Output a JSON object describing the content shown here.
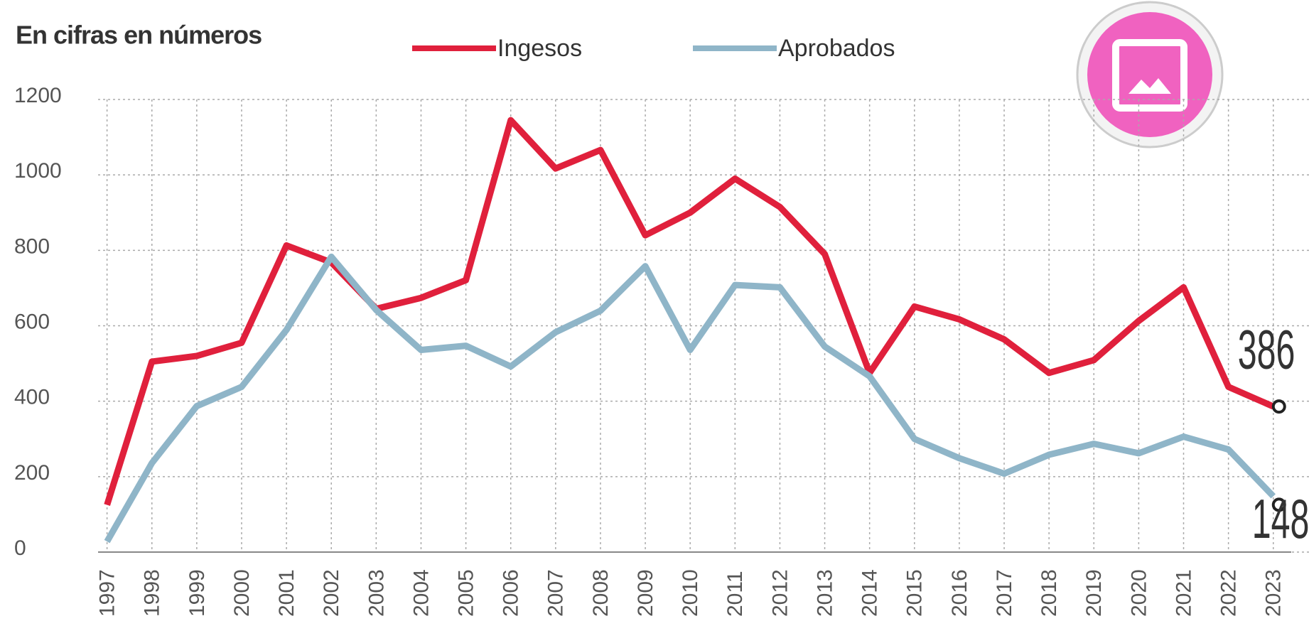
{
  "chart_data": {
    "type": "line",
    "title": "En cifras en números",
    "x": [
      1997,
      1998,
      1999,
      2000,
      2001,
      2002,
      2003,
      2004,
      2005,
      2006,
      2007,
      2008,
      2009,
      2010,
      2011,
      2012,
      2013,
      2014,
      2015,
      2016,
      2017,
      2018,
      2019,
      2020,
      2021,
      2022,
      2023
    ],
    "series": [
      {
        "name": "Ingesos",
        "color": "#e0203c",
        "values": [
          125,
          505,
          520,
          555,
          813,
          768,
          645,
          674,
          721,
          1145,
          1017,
          1066,
          840,
          900,
          990,
          915,
          790,
          475,
          651,
          617,
          564,
          475,
          509,
          613,
          702,
          438,
          386
        ]
      },
      {
        "name": "Aprobados",
        "color": "#8fb5c8",
        "values": [
          28,
          236,
          387,
          438,
          589,
          783,
          642,
          536,
          547,
          492,
          583,
          640,
          758,
          536,
          708,
          702,
          545,
          466,
          300,
          249,
          208,
          258,
          287,
          262,
          306,
          272,
          148
        ]
      }
    ],
    "xlim": [
      1996.8,
      2023.4
    ],
    "xticks": [
      1997,
      1998,
      1999,
      2000,
      2001,
      2002,
      2003,
      2004,
      2005,
      2006,
      2007,
      2008,
      2009,
      2010,
      2011,
      2012,
      2013,
      2014,
      2015,
      2016,
      2017,
      2018,
      2019,
      2020,
      2021,
      2022,
      2023
    ],
    "ylim": [
      0,
      1200
    ],
    "yticks": [
      0,
      200,
      400,
      600,
      800,
      1000,
      1200
    ],
    "grid": true
  }
}
